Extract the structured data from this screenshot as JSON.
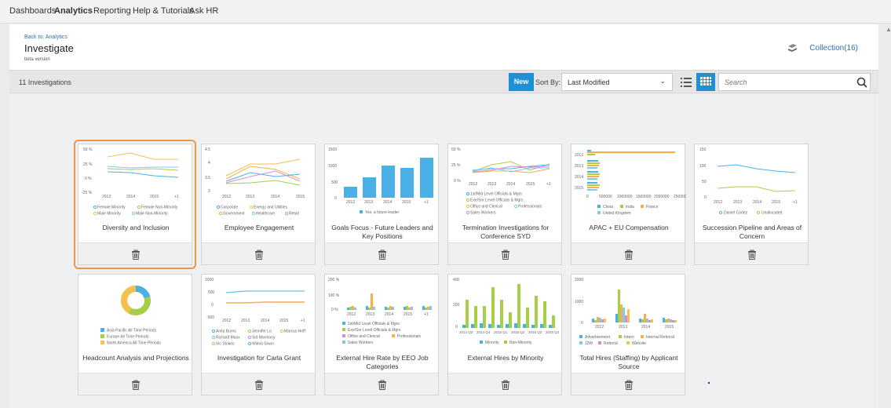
{
  "nav": [
    "Dashboards",
    "Analytics",
    "Reporting",
    "Help & Tutorials",
    "Ask HR"
  ],
  "header": {
    "back": "Back to: Analytics",
    "title": "Investigate",
    "beta": "beta version",
    "collection": "Collection(16)"
  },
  "toolbar": {
    "count": "11 Investigations",
    "new": "New",
    "sort_label": "Sort By:",
    "sort_value": "Last Modified",
    "search_placeholder": "Search"
  },
  "cards": [
    {
      "title": "Diversity and Inclusion",
      "axis": [
        "50 %",
        "25 %",
        "0 %",
        "-25 %"
      ],
      "xt": [
        "2013",
        "2014",
        "2015",
        "+1"
      ],
      "legend": [
        "Female Minority",
        "Female Non-Minority",
        "Male Minority",
        "Male Non-Minority"
      ]
    },
    {
      "title": "Employee Engagement",
      "axis": [
        "4.5",
        "4",
        "3.5",
        "3"
      ],
      "xt": [
        "2012",
        "2013",
        "2014",
        "2015"
      ],
      "legend": [
        "Corporate",
        "Energy and Utilities",
        "Government",
        "Healthcare",
        "Retail"
      ]
    },
    {
      "title": "Goals Focus - Future Leaders and Key Positions",
      "axis": [
        "1500",
        "1000",
        "500",
        "0"
      ],
      "xt": [
        "2012",
        "2013",
        "2014",
        "2015",
        "+1"
      ],
      "legend": [
        "Yes, a future leader"
      ]
    },
    {
      "title": "Termination Investigations for Conference SYD",
      "axis": [
        "50 %",
        "25 %",
        "0 %"
      ],
      "xt": [
        "2012",
        "2013",
        "2014",
        "2015",
        "+1"
      ],
      "legend": [
        "1st/Mid Level Officials & Mgrs",
        "Exe/Snr Level Officials & Mgrs",
        "Office and Clerical",
        "Professionals",
        "Sales Workers"
      ]
    },
    {
      "title": "APAC + EU Compensation",
      "axis": [
        "2012",
        "2013",
        "2014",
        "2015"
      ],
      "xt": [
        "0",
        "500000",
        "1000000",
        "1500000",
        "2000000",
        "250000"
      ],
      "legend": [
        "China",
        "India",
        "France",
        "United Kingdom"
      ]
    },
    {
      "title": "Succession Pipeline and Areas of Concern",
      "axis": [
        "150",
        "100",
        "50",
        "0"
      ],
      "xt": [
        "2012",
        "2013",
        "2014",
        "2015",
        "+1"
      ],
      "legend": [
        "Daniel Cortez",
        "Unallocated"
      ]
    },
    {
      "title": "Headcount Analysis and Projections",
      "legend": [
        "Asia Pacific All Time Periods",
        "Europe All Time Periods",
        "North America All Time Periods"
      ]
    },
    {
      "title": "Investigation for Carla Grant",
      "axis": [
        "1000",
        "500",
        "0",
        "-500"
      ],
      "xt": [
        "2012",
        "2013",
        "2014",
        "2015",
        "+1"
      ],
      "legend": [
        "Anita Burns",
        "Jennifer Lo",
        "Marcus Hoff",
        "Richard Maxx",
        "Sid Mormony",
        "Vic Stokes",
        "Wilma Sown"
      ]
    },
    {
      "title": "External Hire Rate by EEO Job Categories",
      "axis": [
        "200 %",
        "100 %",
        "0 %"
      ],
      "xt": [
        "2012",
        "2013",
        "2014",
        "2015",
        "+1"
      ],
      "legend": [
        "1st/Mid Level Officials & Mgrs",
        "Exe/Snr Level Officials & Mgrs",
        "Office and Clerical",
        "Professionals",
        "Sales Workers"
      ]
    },
    {
      "title": "External Hires by Minority",
      "axis": [
        "400",
        "200",
        "0"
      ],
      "xt": [
        "2014 Q3",
        "2014 Q4",
        "2015 Q1",
        "2015 Q2",
        "2015 Q3",
        "2015 Q4"
      ],
      "legend": [
        "Minority",
        "Non-Minority"
      ]
    },
    {
      "title": "Total Hires (Staffing) by Applicant Source",
      "axis": [
        "2000",
        "1000",
        "0"
      ],
      "xt": [
        "2012",
        "2013",
        "2014",
        "2015"
      ],
      "legend": [
        "Advertisement",
        "Intern",
        "Internal Referral",
        "J2W",
        "Referral",
        "Website"
      ]
    }
  ],
  "colors": {
    "accent": "#1e90d8",
    "selected_outline": "#e8984c",
    "blue": "#4bb0e6",
    "yellow": "#f2c14e",
    "green": "#a4cf46",
    "pink": "#d58fcf",
    "orange": "#f4b04a"
  }
}
